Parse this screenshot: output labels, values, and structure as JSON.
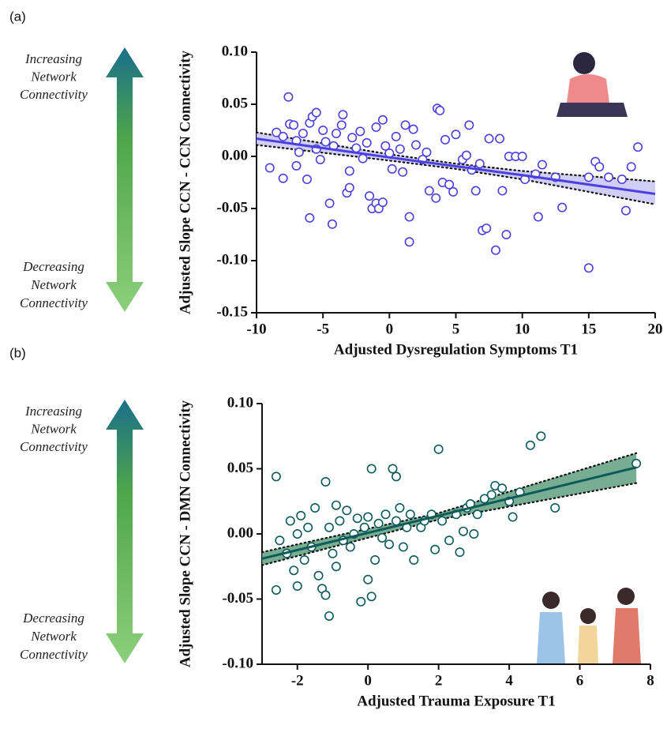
{
  "chart_data": [
    {
      "type": "scatter",
      "panel_label": "(a)",
      "xlabel": "Adjusted Dysregulation Symptoms T1",
      "ylabel": "Adjusted Slope CCN - CCN Connectivity",
      "top_note": [
        "Increasing",
        "Network",
        "Connectivity"
      ],
      "bottom_note": [
        "Decreasing",
        "Network",
        "Connectivity"
      ],
      "xlim": [
        -10,
        20
      ],
      "ylim": [
        -0.15,
        0.1
      ],
      "xticks": [
        -10,
        -5,
        0,
        5,
        10,
        15,
        20
      ],
      "yticks": [
        {
          "value": -0.15,
          "label": "-0.15"
        },
        {
          "value": -0.1,
          "label": "-0.10"
        },
        {
          "value": -0.05,
          "label": "-0.05"
        },
        {
          "value": 0,
          "label": "0.00"
        },
        {
          "value": 0.05,
          "label": "0.05"
        },
        {
          "value": 0.1,
          "label": "0.10"
        }
      ],
      "color": "#4b3fe0",
      "marker_fill": "#ffffff",
      "band_color": "#c9c5f3",
      "x": [
        -9,
        -8.5,
        -8,
        -8,
        -7.6,
        -7.5,
        -7.2,
        -7,
        -7,
        -6.8,
        -6.5,
        -6.2,
        -6,
        -6,
        -5.8,
        -5.5,
        -5.5,
        -5.2,
        -5,
        -4.8,
        -4.5,
        -4.3,
        -4.2,
        -4,
        -3.6,
        -3.5,
        -3.2,
        -3,
        -3,
        -2.8,
        -2.5,
        -2.2,
        -2,
        -1.7,
        -1.5,
        -1.3,
        -1,
        -1,
        -0.8,
        -0.5,
        -0.5,
        -0.3,
        0,
        0.2,
        0.5,
        0.8,
        1,
        1.2,
        1.5,
        1.5,
        1.8,
        2,
        2.5,
        2.8,
        3,
        3.5,
        3.6,
        3.8,
        4,
        4.2,
        4.5,
        4.8,
        5,
        5.5,
        5.8,
        6,
        6.2,
        6.5,
        6.8,
        7,
        7.3,
        7.5,
        8,
        8.3,
        8.5,
        8.8,
        9,
        9.5,
        10,
        10.2,
        11,
        11.2,
        11.5,
        12.5,
        13,
        15,
        15,
        15.5,
        15.8,
        16.5,
        17.5,
        17.8,
        18.2,
        18.7
      ],
      "y": [
        -0.011,
        0.023,
        0.019,
        -0.021,
        0.057,
        0.031,
        0.03,
        0.015,
        -0.009,
        0.004,
        0.022,
        -0.022,
        -0.059,
        0.032,
        0.038,
        0.042,
        0.007,
        -0.003,
        0.025,
        0.014,
        -0.045,
        -0.065,
        0.01,
        0.022,
        0.03,
        0.04,
        -0.035,
        -0.03,
        -0.014,
        0.018,
        0.008,
        0.024,
        -0.002,
        0.013,
        -0.038,
        -0.05,
        -0.045,
        0.028,
        -0.05,
        0.035,
        -0.044,
        0.01,
        0.003,
        -0.012,
        0.019,
        0.007,
        -0.015,
        0.03,
        -0.058,
        -0.082,
        0.026,
        0.011,
        -0.003,
        0.004,
        -0.033,
        -0.04,
        0.046,
        0.044,
        -0.025,
        0.016,
        -0.027,
        -0.034,
        0.021,
        -0.003,
        0.001,
        0.03,
        -0.013,
        -0.033,
        -0.007,
        -0.071,
        -0.069,
        0.017,
        -0.09,
        0.017,
        -0.033,
        -0.075,
        0,
        0,
        0,
        -0.022,
        -0.017,
        -0.058,
        -0.008,
        -0.02,
        -0.049,
        -0.107,
        -0.02,
        -0.005,
        -0.01,
        -0.02,
        -0.022,
        -0.052,
        -0.01,
        0.009
      ],
      "fit": {
        "x": [
          -10,
          0,
          5,
          10,
          20
        ],
        "y": [
          0.017,
          -0.001,
          -0.0095,
          -0.018,
          -0.036
        ],
        "upper": [
          0.023,
          0.002,
          -0.007,
          -0.014,
          -0.024
        ],
        "lower": [
          0.011,
          -0.004,
          -0.012,
          -0.022,
          -0.046
        ]
      }
    },
    {
      "type": "scatter",
      "panel_label": "(b)",
      "xlabel": "Adjusted Trauma Exposure T1",
      "ylabel": "Adjusted Slope CCN - DMN Connectivity",
      "top_note": [
        "Increasing",
        "Network",
        "Connectivity"
      ],
      "bottom_note": [
        "Decreasing",
        "Network",
        "Connectivity"
      ],
      "xlim": [
        -3,
        8
      ],
      "ylim": [
        -0.1,
        0.1
      ],
      "xticks": [
        -2,
        0,
        2,
        4,
        6,
        8
      ],
      "yticks": [
        {
          "value": -0.1,
          "label": "-0.10"
        },
        {
          "value": -0.05,
          "label": "-0.05"
        },
        {
          "value": 0,
          "label": "0.00"
        },
        {
          "value": 0.05,
          "label": "0.05"
        },
        {
          "value": 0.1,
          "label": "0.10"
        }
      ],
      "color": "#0e5a5a",
      "marker_fill": "#ffffff",
      "band_color": "#5f9f7e",
      "x": [
        -2.6,
        -2.6,
        -2.5,
        -2.3,
        -2.2,
        -2.1,
        -2,
        -2,
        -1.9,
        -1.8,
        -1.7,
        -1.6,
        -1.5,
        -1.4,
        -1.3,
        -1.2,
        -1.2,
        -1.1,
        -1.1,
        -1,
        -0.9,
        -0.9,
        -0.8,
        -0.7,
        -0.6,
        -0.5,
        -0.4,
        -0.3,
        -0.2,
        -0.1,
        0,
        0,
        0.1,
        0.1,
        0.2,
        0.3,
        0.4,
        0.5,
        0.6,
        0.7,
        0.8,
        0.8,
        0.9,
        1,
        1.1,
        1.2,
        1.3,
        1.5,
        1.6,
        1.8,
        1.9,
        2,
        2.1,
        2.3,
        2.5,
        2.6,
        2.7,
        2.8,
        2.9,
        3,
        3.1,
        3.3,
        3.5,
        3.6,
        3.8,
        4,
        4.1,
        4.3,
        4.6,
        4.9,
        5.3,
        7.6
      ],
      "y": [
        0.044,
        -0.043,
        -0.005,
        -0.015,
        0.01,
        -0.028,
        -0.04,
        0,
        0.014,
        -0.02,
        0.005,
        -0.01,
        0.02,
        -0.032,
        -0.042,
        -0.047,
        0.04,
        -0.063,
        0.005,
        -0.015,
        0.022,
        -0.025,
        0.01,
        -0.005,
        0.018,
        -0.01,
        0,
        0.012,
        -0.052,
        0.005,
        0.013,
        -0.035,
        -0.048,
        0.05,
        -0.02,
        0.008,
        -0.003,
        0.015,
        -0.008,
        0.05,
        0.044,
        0.01,
        0.02,
        -0.01,
        0.005,
        0.015,
        -0.02,
        0.005,
        0.01,
        0.015,
        -0.012,
        0.065,
        0.01,
        -0.005,
        0.015,
        -0.014,
        0.002,
        0.02,
        0.023,
        0,
        0.015,
        0.027,
        0.03,
        0.037,
        0.035,
        0.025,
        0.013,
        0.032,
        0.068,
        0.075,
        0.02,
        0.054
      ],
      "fit": {
        "x": [
          -3,
          2,
          7.6
        ],
        "y": [
          -0.019,
          0.014,
          0.051
        ],
        "upper": [
          -0.014,
          0.016,
          0.062
        ],
        "lower": [
          -0.024,
          0.011,
          0.039
        ]
      }
    }
  ]
}
